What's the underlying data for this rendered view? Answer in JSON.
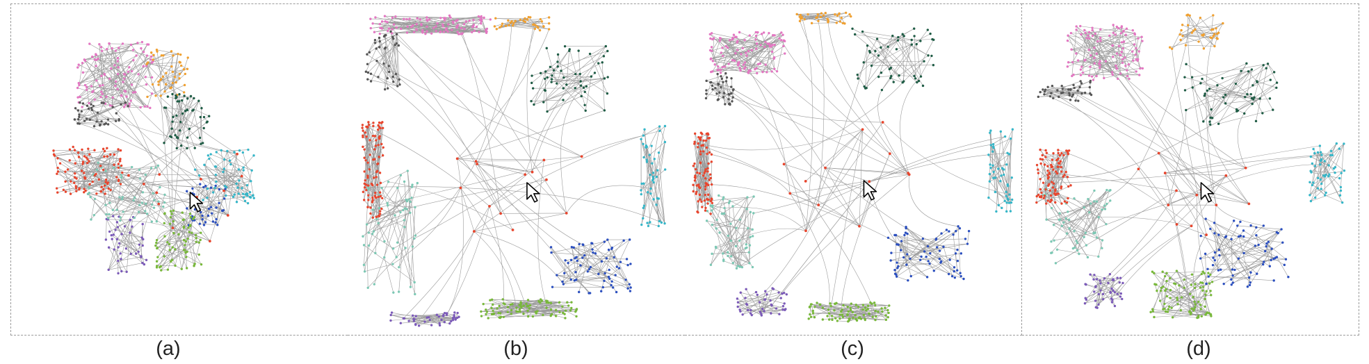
{
  "panels": [
    {
      "caption": "(a)",
      "layout": "radial-compact"
    },
    {
      "caption": "(b)",
      "layout": "square-boundary"
    },
    {
      "caption": "(c)",
      "layout": "circular-boundary"
    },
    {
      "caption": "(d)",
      "layout": "hybrid"
    }
  ],
  "cluster_colors": {
    "pink": "#e377c2",
    "orange": "#f0a030",
    "gray": "#555555",
    "dark_green": "#1f5c45",
    "cyan": "#35b6c8",
    "blue": "#2b4fbf",
    "green": "#78b83a",
    "purple": "#7b5ab8",
    "teal": "#7cc8b4",
    "red": "#e8452d"
  },
  "edge_color": "#9a9a9a",
  "icons": {
    "cursor": "cursor-arrow-icon"
  }
}
